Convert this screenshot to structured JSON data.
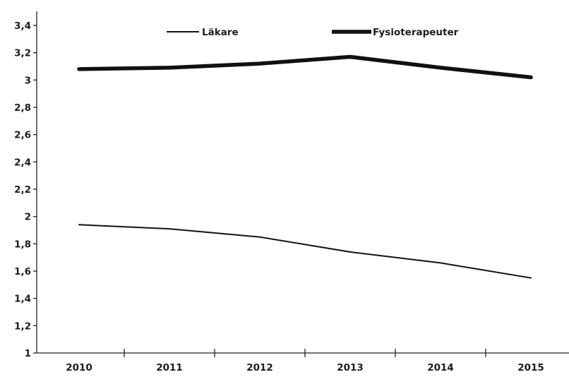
{
  "chart_data": {
    "type": "line",
    "title": "",
    "xlabel": "",
    "ylabel": "",
    "categories": [
      "2010",
      "2011",
      "2012",
      "2013",
      "2014",
      "2015"
    ],
    "ylim": [
      1,
      3.4
    ],
    "yticks": [
      1,
      1.2,
      1.4,
      1.6,
      1.8,
      2,
      2.2,
      2.4,
      2.6,
      2.8,
      3,
      3.2,
      3.4
    ],
    "ytick_labels": [
      "1",
      "1,2",
      "1,4",
      "1,6",
      "1,8",
      "2",
      "2,2",
      "2,4",
      "2,6",
      "2,8",
      "3",
      "3,2",
      "3,4"
    ],
    "grid": false,
    "legend_position": "top",
    "series": [
      {
        "name": "Läkare",
        "values": [
          1.94,
          1.91,
          1.85,
          1.74,
          1.66,
          1.55
        ],
        "line_style": "thin"
      },
      {
        "name": "Fysioterapeuter",
        "values": [
          3.08,
          3.09,
          3.12,
          3.17,
          3.09,
          3.02
        ],
        "line_style": "thick"
      }
    ],
    "colors": {
      "line": "#111111",
      "axis": "#222222",
      "text": "#1c1c1c",
      "background": "#ffffff"
    }
  }
}
